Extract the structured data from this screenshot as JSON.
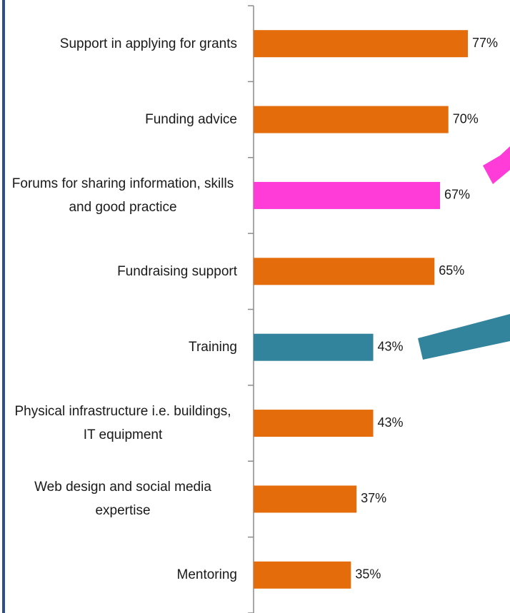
{
  "chart_data": {
    "type": "bar",
    "orientation": "horizontal",
    "categories": [
      "Support in applying for grants",
      "Funding advice",
      "Forums for sharing information, skills and good practice",
      "Fundraising support",
      "Training",
      "Physical infrastructure i.e. buildings, IT equipment",
      "Web design and social media expertise",
      "Mentoring"
    ],
    "values": [
      77,
      70,
      67,
      65,
      43,
      43,
      37,
      35
    ],
    "value_labels": [
      "77%",
      "70%",
      "67%",
      "65%",
      "43%",
      "43%",
      "37%",
      "35%"
    ],
    "colors": [
      "#e46c0a",
      "#e46c0a",
      "#ff3bd8",
      "#e46c0a",
      "#31849b",
      "#e46c0a",
      "#e46c0a",
      "#e46c0a"
    ]
  }
}
